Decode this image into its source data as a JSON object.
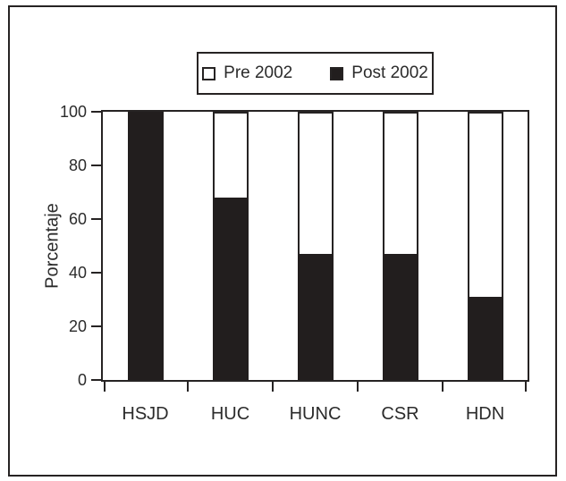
{
  "figure": {
    "background": "#ffffff",
    "ink": "#262323",
    "bar_fill": "#221e1e"
  },
  "chart_data": {
    "type": "bar",
    "stacked": true,
    "title": "",
    "xlabel": "",
    "ylabel": "Porcentaje",
    "categories": [
      "HSJD",
      "HUC",
      "HUNC",
      "CSR",
      "HDN"
    ],
    "series": [
      {
        "name": "Pre 2002",
        "fill": "#ffffff",
        "values": [
          0,
          32,
          53,
          53,
          69
        ]
      },
      {
        "name": "Post 2002",
        "fill": "#221e1e",
        "values": [
          100,
          68,
          47,
          47,
          31
        ]
      }
    ],
    "stack_totals": [
      100,
      100,
      100,
      100,
      100
    ],
    "ylim": [
      0,
      100
    ],
    "yticks": [
      0,
      20,
      40,
      60,
      80,
      100
    ],
    "legend_position": "top-center",
    "grid": false,
    "bar_outline": "#262323"
  }
}
